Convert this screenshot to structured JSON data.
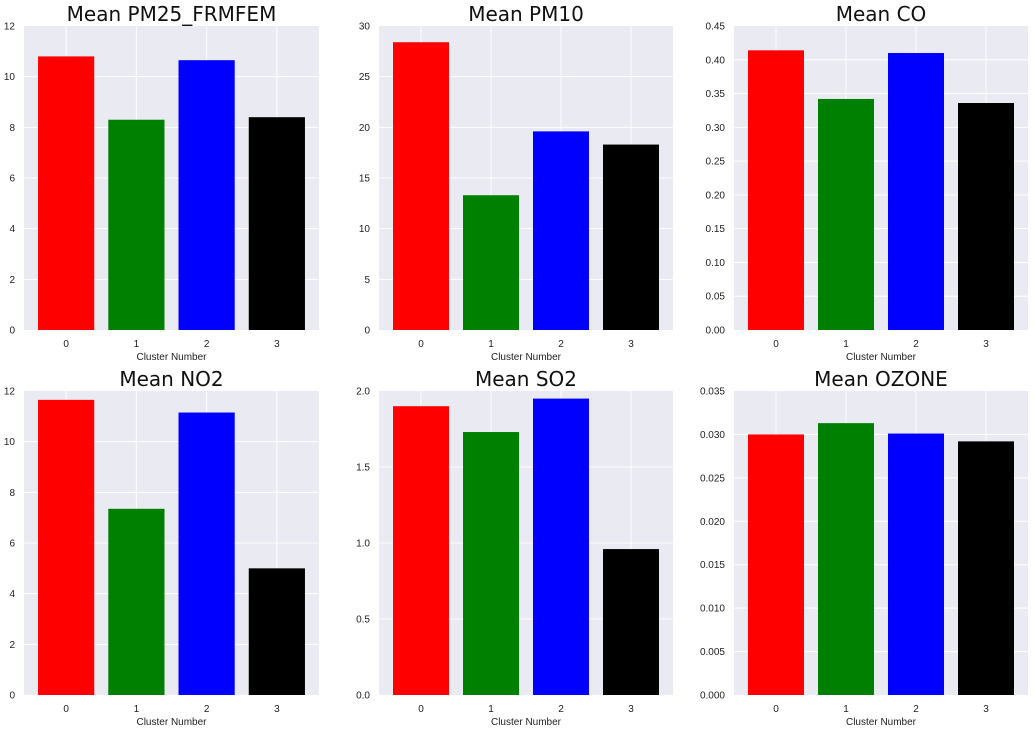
{
  "chart_data": [
    {
      "type": "bar",
      "title": "Mean PM25_FRMFEM",
      "xlabel": "Cluster Number",
      "ylabel": "",
      "categories": [
        "0",
        "1",
        "2",
        "3"
      ],
      "values": [
        10.8,
        8.3,
        10.65,
        8.4
      ],
      "colors": [
        "#ff0000",
        "#008000",
        "#0000ff",
        "#000000"
      ],
      "ylim": [
        0,
        12
      ],
      "yticks": [
        0,
        2,
        4,
        6,
        8,
        10,
        12
      ],
      "ytick_labels": [
        "0",
        "2",
        "4",
        "6",
        "8",
        "10",
        "12"
      ],
      "grid": true
    },
    {
      "type": "bar",
      "title": "Mean PM10",
      "xlabel": "Cluster Number",
      "ylabel": "",
      "categories": [
        "0",
        "1",
        "2",
        "3"
      ],
      "values": [
        28.4,
        13.3,
        19.6,
        18.3
      ],
      "colors": [
        "#ff0000",
        "#008000",
        "#0000ff",
        "#000000"
      ],
      "ylim": [
        0,
        30
      ],
      "yticks": [
        0,
        5,
        10,
        15,
        20,
        25,
        30
      ],
      "ytick_labels": [
        "0",
        "5",
        "10",
        "15",
        "20",
        "25",
        "30"
      ],
      "grid": true
    },
    {
      "type": "bar",
      "title": "Mean CO",
      "xlabel": "Cluster Number",
      "ylabel": "",
      "categories": [
        "0",
        "1",
        "2",
        "3"
      ],
      "values": [
        0.414,
        0.342,
        0.41,
        0.336
      ],
      "colors": [
        "#ff0000",
        "#008000",
        "#0000ff",
        "#000000"
      ],
      "ylim": [
        0,
        0.45
      ],
      "yticks": [
        0,
        0.05,
        0.1,
        0.15,
        0.2,
        0.25,
        0.3,
        0.35,
        0.4,
        0.45
      ],
      "ytick_labels": [
        "0.00",
        "0.05",
        "0.10",
        "0.15",
        "0.20",
        "0.25",
        "0.30",
        "0.35",
        "0.40",
        "0.45"
      ],
      "grid": true
    },
    {
      "type": "bar",
      "title": "Mean NO2",
      "xlabel": "Cluster Number",
      "ylabel": "",
      "categories": [
        "0",
        "1",
        "2",
        "3"
      ],
      "values": [
        11.65,
        7.35,
        11.15,
        5.0
      ],
      "colors": [
        "#ff0000",
        "#008000",
        "#0000ff",
        "#000000"
      ],
      "ylim": [
        0,
        12
      ],
      "yticks": [
        0,
        2,
        4,
        6,
        8,
        10,
        12
      ],
      "ytick_labels": [
        "0",
        "2",
        "4",
        "6",
        "8",
        "10",
        "12"
      ],
      "grid": true
    },
    {
      "type": "bar",
      "title": "Mean SO2",
      "xlabel": "Cluster Number",
      "ylabel": "",
      "categories": [
        "0",
        "1",
        "2",
        "3"
      ],
      "values": [
        1.9,
        1.73,
        1.95,
        0.96
      ],
      "colors": [
        "#ff0000",
        "#008000",
        "#0000ff",
        "#000000"
      ],
      "ylim": [
        0,
        2.0
      ],
      "yticks": [
        0,
        0.5,
        1.0,
        1.5,
        2.0
      ],
      "ytick_labels": [
        "0.0",
        "0.5",
        "1.0",
        "1.5",
        "2.0"
      ],
      "grid": true
    },
    {
      "type": "bar",
      "title": "Mean OZONE",
      "xlabel": "Cluster Number",
      "ylabel": "",
      "categories": [
        "0",
        "1",
        "2",
        "3"
      ],
      "values": [
        0.03,
        0.0313,
        0.0301,
        0.0292
      ],
      "colors": [
        "#ff0000",
        "#008000",
        "#0000ff",
        "#000000"
      ],
      "ylim": [
        0,
        0.035
      ],
      "yticks": [
        0,
        0.005,
        0.01,
        0.015,
        0.02,
        0.025,
        0.03,
        0.035
      ],
      "ytick_labels": [
        "0.000",
        "0.005",
        "0.010",
        "0.015",
        "0.020",
        "0.025",
        "0.030",
        "0.035"
      ],
      "grid": true
    }
  ]
}
